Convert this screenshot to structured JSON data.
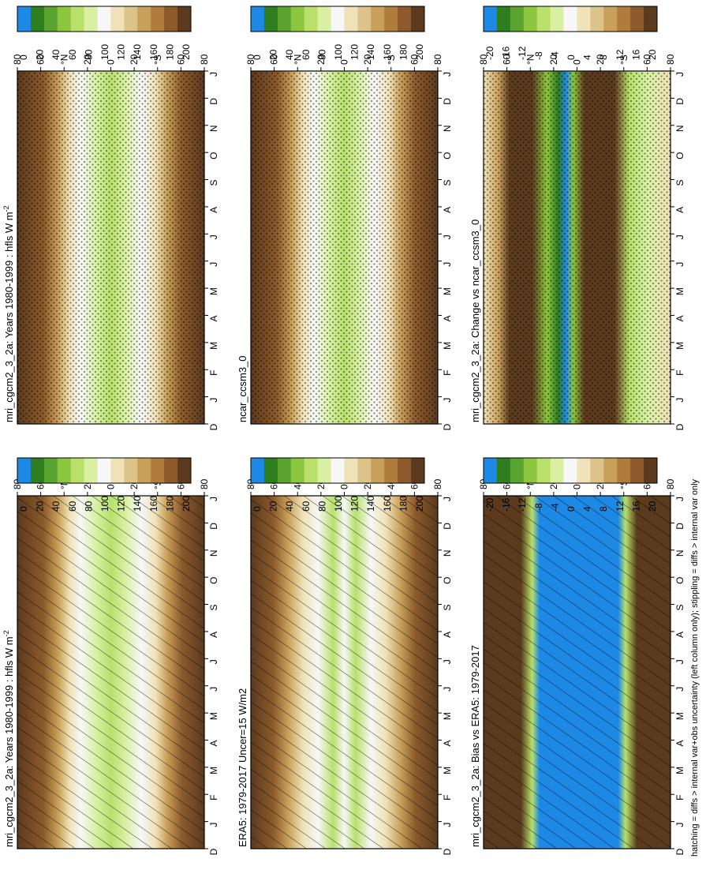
{
  "colors": {
    "brown_dark": "#5b3a1e",
    "brown": "#8c5a2b",
    "brown_mid": "#b07c3c",
    "tan": "#c9a05a",
    "tan_light": "#dcc38a",
    "cream": "#efe2b8",
    "white": "#f7f7f7",
    "green_pale": "#d9f0a3",
    "green_light": "#b8e06b",
    "green": "#8cc63f",
    "green_mid": "#5aa32e",
    "green_dark": "#2e7d1f",
    "blue": "#1e88e5"
  },
  "chart_data": [
    {
      "type": "heatmap",
      "title": "mri_cgcm2_3_2a: Years 1980-1999 : hfls W m",
      "title_superscript": "-2",
      "x_tick_labels": [
        "D",
        "J",
        "F",
        "M",
        "A",
        "M",
        "J",
        "J",
        "A",
        "S",
        "O",
        "N",
        "D",
        "J"
      ],
      "y_tick_labels": [
        "80",
        "60",
        "°N",
        "20",
        "0",
        "20",
        "°S",
        "60",
        "80"
      ],
      "colorbar_labels": [
        "200",
        "180",
        "160",
        "140",
        "120",
        "100",
        "80",
        "60",
        "40",
        "20",
        "0"
      ],
      "overlay": "hatching"
    },
    {
      "type": "heatmap",
      "title": "mri_cgcm2_3_2a: Years 1980-1999 : hfls W m",
      "title_superscript": "-2",
      "x_tick_labels": [
        "D",
        "J",
        "F",
        "M",
        "A",
        "M",
        "J",
        "J",
        "A",
        "S",
        "O",
        "N",
        "D",
        "J"
      ],
      "y_tick_labels": [
        "80",
        "60",
        "°N",
        "20",
        "0",
        "20",
        "°S",
        "60",
        "80"
      ],
      "colorbar_labels": [
        "200",
        "180",
        "160",
        "140",
        "120",
        "100",
        "80",
        "60",
        "40",
        "20",
        "0"
      ],
      "overlay": "stippling"
    },
    {
      "type": "heatmap",
      "title": "ERA5: 1979-2017 Uncer=15 W/m2",
      "x_tick_labels": [
        "D",
        "J",
        "F",
        "M",
        "A",
        "M",
        "J",
        "J",
        "A",
        "S",
        "O",
        "N",
        "D",
        "J"
      ],
      "y_tick_labels": [
        "80",
        "60",
        "40",
        "20",
        "0",
        "20",
        "40",
        "60",
        "80"
      ],
      "colorbar_labels": [
        "200",
        "180",
        "160",
        "140",
        "120",
        "100",
        "80",
        "60",
        "40",
        "20",
        "0"
      ],
      "overlay": "hatching"
    },
    {
      "type": "heatmap",
      "title": "ncar_ccsm3_0",
      "x_tick_labels": [
        "D",
        "J",
        "F",
        "M",
        "A",
        "M",
        "J",
        "J",
        "A",
        "S",
        "O",
        "N",
        "D",
        "J"
      ],
      "y_tick_labels": [
        "80",
        "60",
        "°N",
        "20",
        "0",
        "20",
        "°S",
        "60",
        "80"
      ],
      "colorbar_labels": [
        "200",
        "180",
        "160",
        "140",
        "120",
        "100",
        "80",
        "60",
        "40",
        "20",
        "0"
      ],
      "overlay": "stippling"
    },
    {
      "type": "heatmap",
      "title": "mri_cgcm2_3_2a: Bias vs ERA5: 1979-2017",
      "x_tick_labels": [
        "D",
        "J",
        "F",
        "M",
        "A",
        "M",
        "J",
        "J",
        "A",
        "S",
        "O",
        "N",
        "D",
        "J"
      ],
      "y_tick_labels": [
        "80",
        "60",
        "°N",
        "20",
        "0",
        "20",
        "°S",
        "60",
        "80"
      ],
      "colorbar_labels": [
        "20",
        "16",
        "12",
        "8",
        "4",
        "0",
        "-4",
        "-8",
        "-12",
        "-16",
        "-20"
      ],
      "overlay": "hatching"
    },
    {
      "type": "heatmap",
      "title": "mri_cgcm2_3_2a: Change vs ncar_ccsm3_0",
      "x_tick_labels": [
        "D",
        "J",
        "F",
        "M",
        "A",
        "M",
        "J",
        "J",
        "A",
        "S",
        "O",
        "N",
        "D",
        "J"
      ],
      "y_tick_labels": [
        "80",
        "60",
        "°N",
        "20",
        "0",
        "20",
        "°S",
        "60",
        "80"
      ],
      "colorbar_labels": [
        "20",
        "16",
        "12",
        "8",
        "4",
        "0",
        "-4",
        "-8",
        "-12",
        "-16",
        "-20"
      ],
      "overlay": "stippling"
    }
  ],
  "footer": "hatching = diffs > internal var+obs uncertainty (left column only); stippling = diffs > internal var only"
}
